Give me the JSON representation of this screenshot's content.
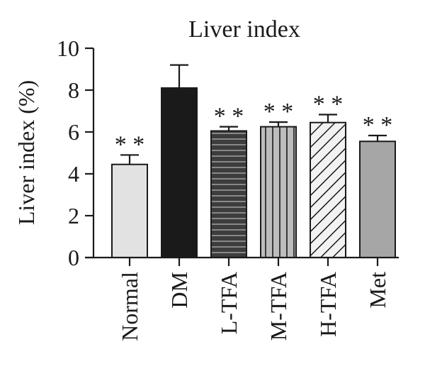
{
  "chart_data": {
    "type": "bar",
    "title": "Liver index",
    "ylabel": "Liver index (%)",
    "xlabel": "",
    "ylim": [
      0,
      10
    ],
    "yticks": [
      0,
      2,
      4,
      6,
      8,
      10
    ],
    "categories": [
      "Normal",
      "DM",
      "L-TFA",
      "M-TFA",
      "H-TFA",
      "Met"
    ],
    "values": [
      4.45,
      8.1,
      6.05,
      6.25,
      6.45,
      5.55
    ],
    "errors": [
      0.45,
      1.1,
      0.2,
      0.22,
      0.38,
      0.28
    ],
    "significance": [
      "* *",
      "",
      "* *",
      "* *",
      "* *",
      "* *"
    ],
    "bar_styles": [
      "light-gray",
      "black",
      "horizontal-stripes",
      "vertical-stripes",
      "diagonal-stripes",
      "gray"
    ],
    "colors": {
      "light_gray": "#e2e2e2",
      "black": "#1a1a1a",
      "dark_gray": "#3d3d3d",
      "mid_gray": "#aaaaaa",
      "gray": "#a6a6a6",
      "outline": "#1a1a1a"
    },
    "grid": false,
    "legend": "none"
  }
}
